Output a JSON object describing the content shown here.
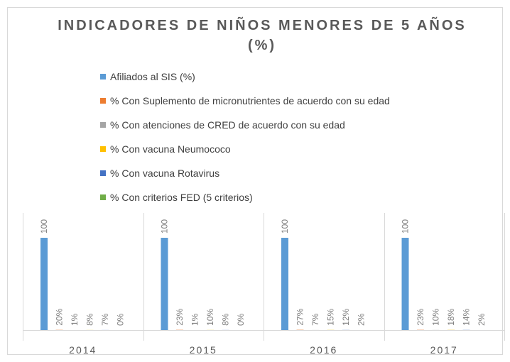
{
  "chart_data": {
    "type": "bar",
    "title": "INDICADORES DE NIÑOS MENORES DE 5 AÑOS",
    "subtitle": "(%)",
    "categories": [
      "2014",
      "2015",
      "2016",
      "2017"
    ],
    "series": [
      {
        "name": "Afiliados al SIS (%)",
        "color": "#5b9bd5",
        "values": [
          100,
          100,
          100,
          100
        ]
      },
      {
        "name": "% Con Suplemento de  micronutrientes de acuerdo con su edad",
        "color": "#ed7d31",
        "values": [
          0.2,
          0.23,
          0.27,
          0.23
        ],
        "value_labels": [
          "20%",
          "23%",
          "27%",
          "23%"
        ]
      },
      {
        "name": "% Con atenciones de CRED de acuerdo con su edad",
        "color": "#a5a5a5",
        "values": [
          0.01,
          0.01,
          0.07,
          0.1
        ],
        "value_labels": [
          "1%",
          "1%",
          "7%",
          "10%"
        ]
      },
      {
        "name": "% Con vacuna Neumococo",
        "color": "#ffc000",
        "values": [
          0.08,
          0.1,
          0.15,
          0.18
        ],
        "value_labels": [
          "8%",
          "10%",
          "15%",
          "18%"
        ]
      },
      {
        "name": "% Con  vacuna Rotavirus",
        "color": "#4472c4",
        "values": [
          0.07,
          0.08,
          0.12,
          0.14
        ],
        "value_labels": [
          "7%",
          "8%",
          "12%",
          "14%"
        ]
      },
      {
        "name": "% Con  criterios FED (5 criterios)",
        "color": "#70ad47",
        "values": [
          0,
          0,
          0.02,
          0.02
        ],
        "value_labels": [
          "0%",
          "0%",
          "2%",
          "2%"
        ]
      }
    ]
  }
}
